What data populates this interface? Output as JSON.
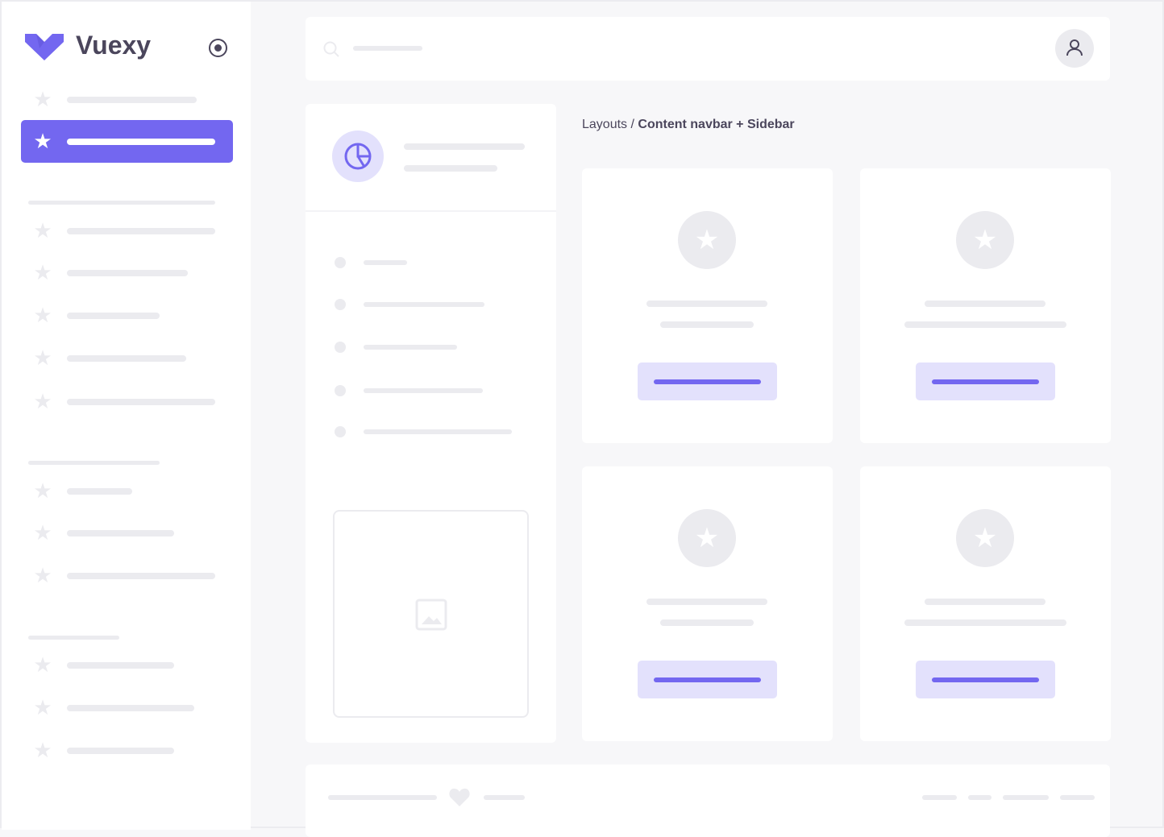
{
  "brand": {
    "name": "Vuexy",
    "color": "#7367f0"
  },
  "colors": {
    "accent": "#7367f0",
    "accent_light": "#e3e1fc",
    "placeholder": "#ebebef",
    "background": "#f7f7f9"
  },
  "breadcrumb": {
    "parent": "Layouts",
    "separator": " / ",
    "current": "Content navbar + Sidebar"
  },
  "icons": {
    "pin": "radio-circle-icon",
    "search": "search-icon",
    "user": "user-icon",
    "chart": "pie-chart-icon",
    "image": "image-icon",
    "heart": "heart-icon",
    "star": "star-icon"
  },
  "sidebar": {
    "active_index": 1
  }
}
